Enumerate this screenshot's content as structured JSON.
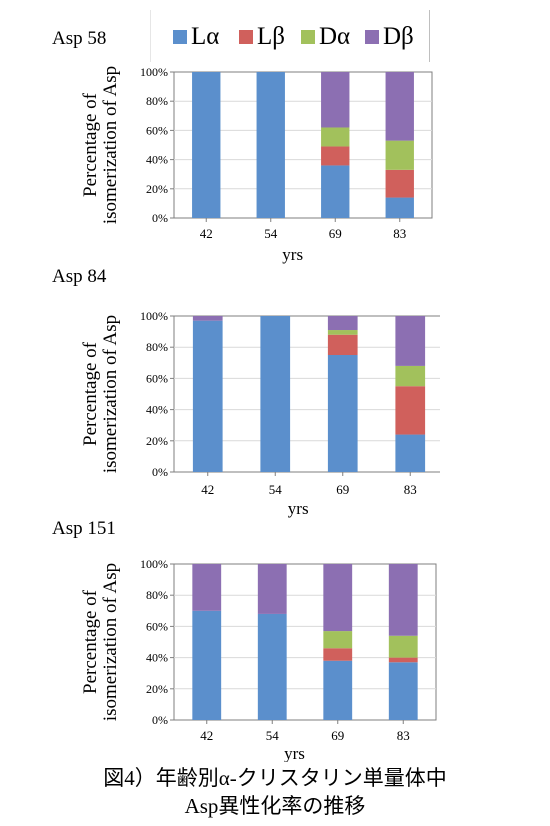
{
  "legend": [
    {
      "label": "Lα",
      "color": "#5b8fcc"
    },
    {
      "label": "Lβ",
      "color": "#d0605c"
    },
    {
      "label": "Dα",
      "color": "#a2c15c"
    },
    {
      "label": "Dβ",
      "color": "#8c6fb2"
    }
  ],
  "caption": {
    "line1": "図4）年齢別α-クリスタリン単量体中",
    "line2": "Asp異性化率の推移"
  },
  "chart_data": [
    {
      "type": "bar",
      "stacked": true,
      "title": "Asp 58",
      "categories": [
        "42",
        "54",
        "69",
        "83"
      ],
      "xlabel": "yrs",
      "ylabel_line1": "Percentage of",
      "ylabel_line2": "isomerization of Asp",
      "yticks": [
        "0%",
        "20%",
        "40%",
        "60%",
        "80%",
        "100%"
      ],
      "ylim": [
        0,
        100
      ],
      "series": [
        {
          "name": "Lα",
          "values": [
            100,
            100,
            36,
            14
          ]
        },
        {
          "name": "Lβ",
          "values": [
            0,
            0,
            13,
            19
          ]
        },
        {
          "name": "Dα",
          "values": [
            0,
            0,
            13,
            20
          ]
        },
        {
          "name": "Dβ",
          "values": [
            0,
            0,
            38,
            47
          ]
        }
      ]
    },
    {
      "type": "bar",
      "stacked": true,
      "title": "Asp 84",
      "categories": [
        "42",
        "54",
        "69",
        "83"
      ],
      "xlabel": "yrs",
      "ylabel_line1": "Percentage of",
      "ylabel_line2": "isomerization of Asp",
      "yticks": [
        "0%",
        "20%",
        "40%",
        "60%",
        "80%",
        "100%"
      ],
      "ylim": [
        0,
        100
      ],
      "series": [
        {
          "name": "Lα",
          "values": [
            97,
            100,
            75,
            24
          ]
        },
        {
          "name": "Lβ",
          "values": [
            0,
            0,
            13,
            31
          ]
        },
        {
          "name": "Dα",
          "values": [
            0,
            0,
            3,
            13
          ]
        },
        {
          "name": "Dβ",
          "values": [
            3,
            0,
            9,
            32
          ]
        }
      ]
    },
    {
      "type": "bar",
      "stacked": true,
      "title": "Asp 151",
      "categories": [
        "42",
        "54",
        "69",
        "83"
      ],
      "xlabel": "yrs",
      "ylabel_line1": "Percentage of",
      "ylabel_line2": "isomerization of Asp",
      "yticks": [
        "0%",
        "20%",
        "40%",
        "60%",
        "80%",
        "100%"
      ],
      "ylim": [
        0,
        100
      ],
      "series": [
        {
          "name": "Lα",
          "values": [
            70,
            68,
            38,
            37
          ]
        },
        {
          "name": "Lβ",
          "values": [
            0,
            0,
            8,
            3
          ]
        },
        {
          "name": "Dα",
          "values": [
            0,
            0,
            11,
            14
          ]
        },
        {
          "name": "Dβ",
          "values": [
            30,
            32,
            43,
            46
          ]
        }
      ]
    }
  ]
}
